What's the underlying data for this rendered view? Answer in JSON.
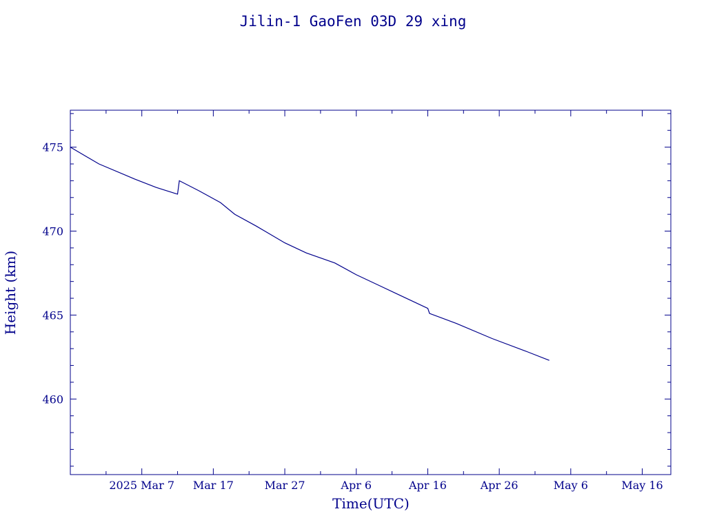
{
  "chart_data": {
    "type": "line",
    "title": "Jilin-1 GaoFen 03D 29 xing",
    "xlabel": "Time(UTC)",
    "ylabel": "Height (km)",
    "x_tick_labels": [
      "2025 Mar  7",
      "Mar 17",
      "Mar 27",
      "Apr  6",
      "Apr 16",
      "Apr 26",
      "May  6",
      "May 16"
    ],
    "y_tick_labels": [
      "460",
      "465",
      "470",
      "475"
    ],
    "xlim": [
      "2025-02-25",
      "2025-05-20"
    ],
    "ylim": [
      455.5,
      477.2
    ],
    "color": "#00008b",
    "grid": false,
    "series": [
      {
        "x": [
          "2025-02-25",
          "2025-03-01",
          "2025-03-06",
          "2025-03-09",
          "2025-03-12",
          "2025-03-12T06:00",
          "2025-03-15",
          "2025-03-18",
          "2025-03-20",
          "2025-03-23",
          "2025-03-27",
          "2025-03-30",
          "2025-04-03",
          "2025-04-06",
          "2025-04-09",
          "2025-04-12",
          "2025-04-16",
          "2025-04-16T06:00",
          "2025-04-20",
          "2025-04-25",
          "2025-04-30",
          "2025-05-03"
        ],
        "y": [
          475.0,
          474.0,
          473.1,
          472.6,
          472.2,
          473.0,
          472.4,
          471.7,
          471.0,
          470.3,
          469.3,
          468.7,
          468.1,
          467.4,
          466.8,
          466.2,
          465.4,
          465.1,
          464.5,
          463.6,
          462.8,
          462.3
        ]
      }
    ]
  }
}
